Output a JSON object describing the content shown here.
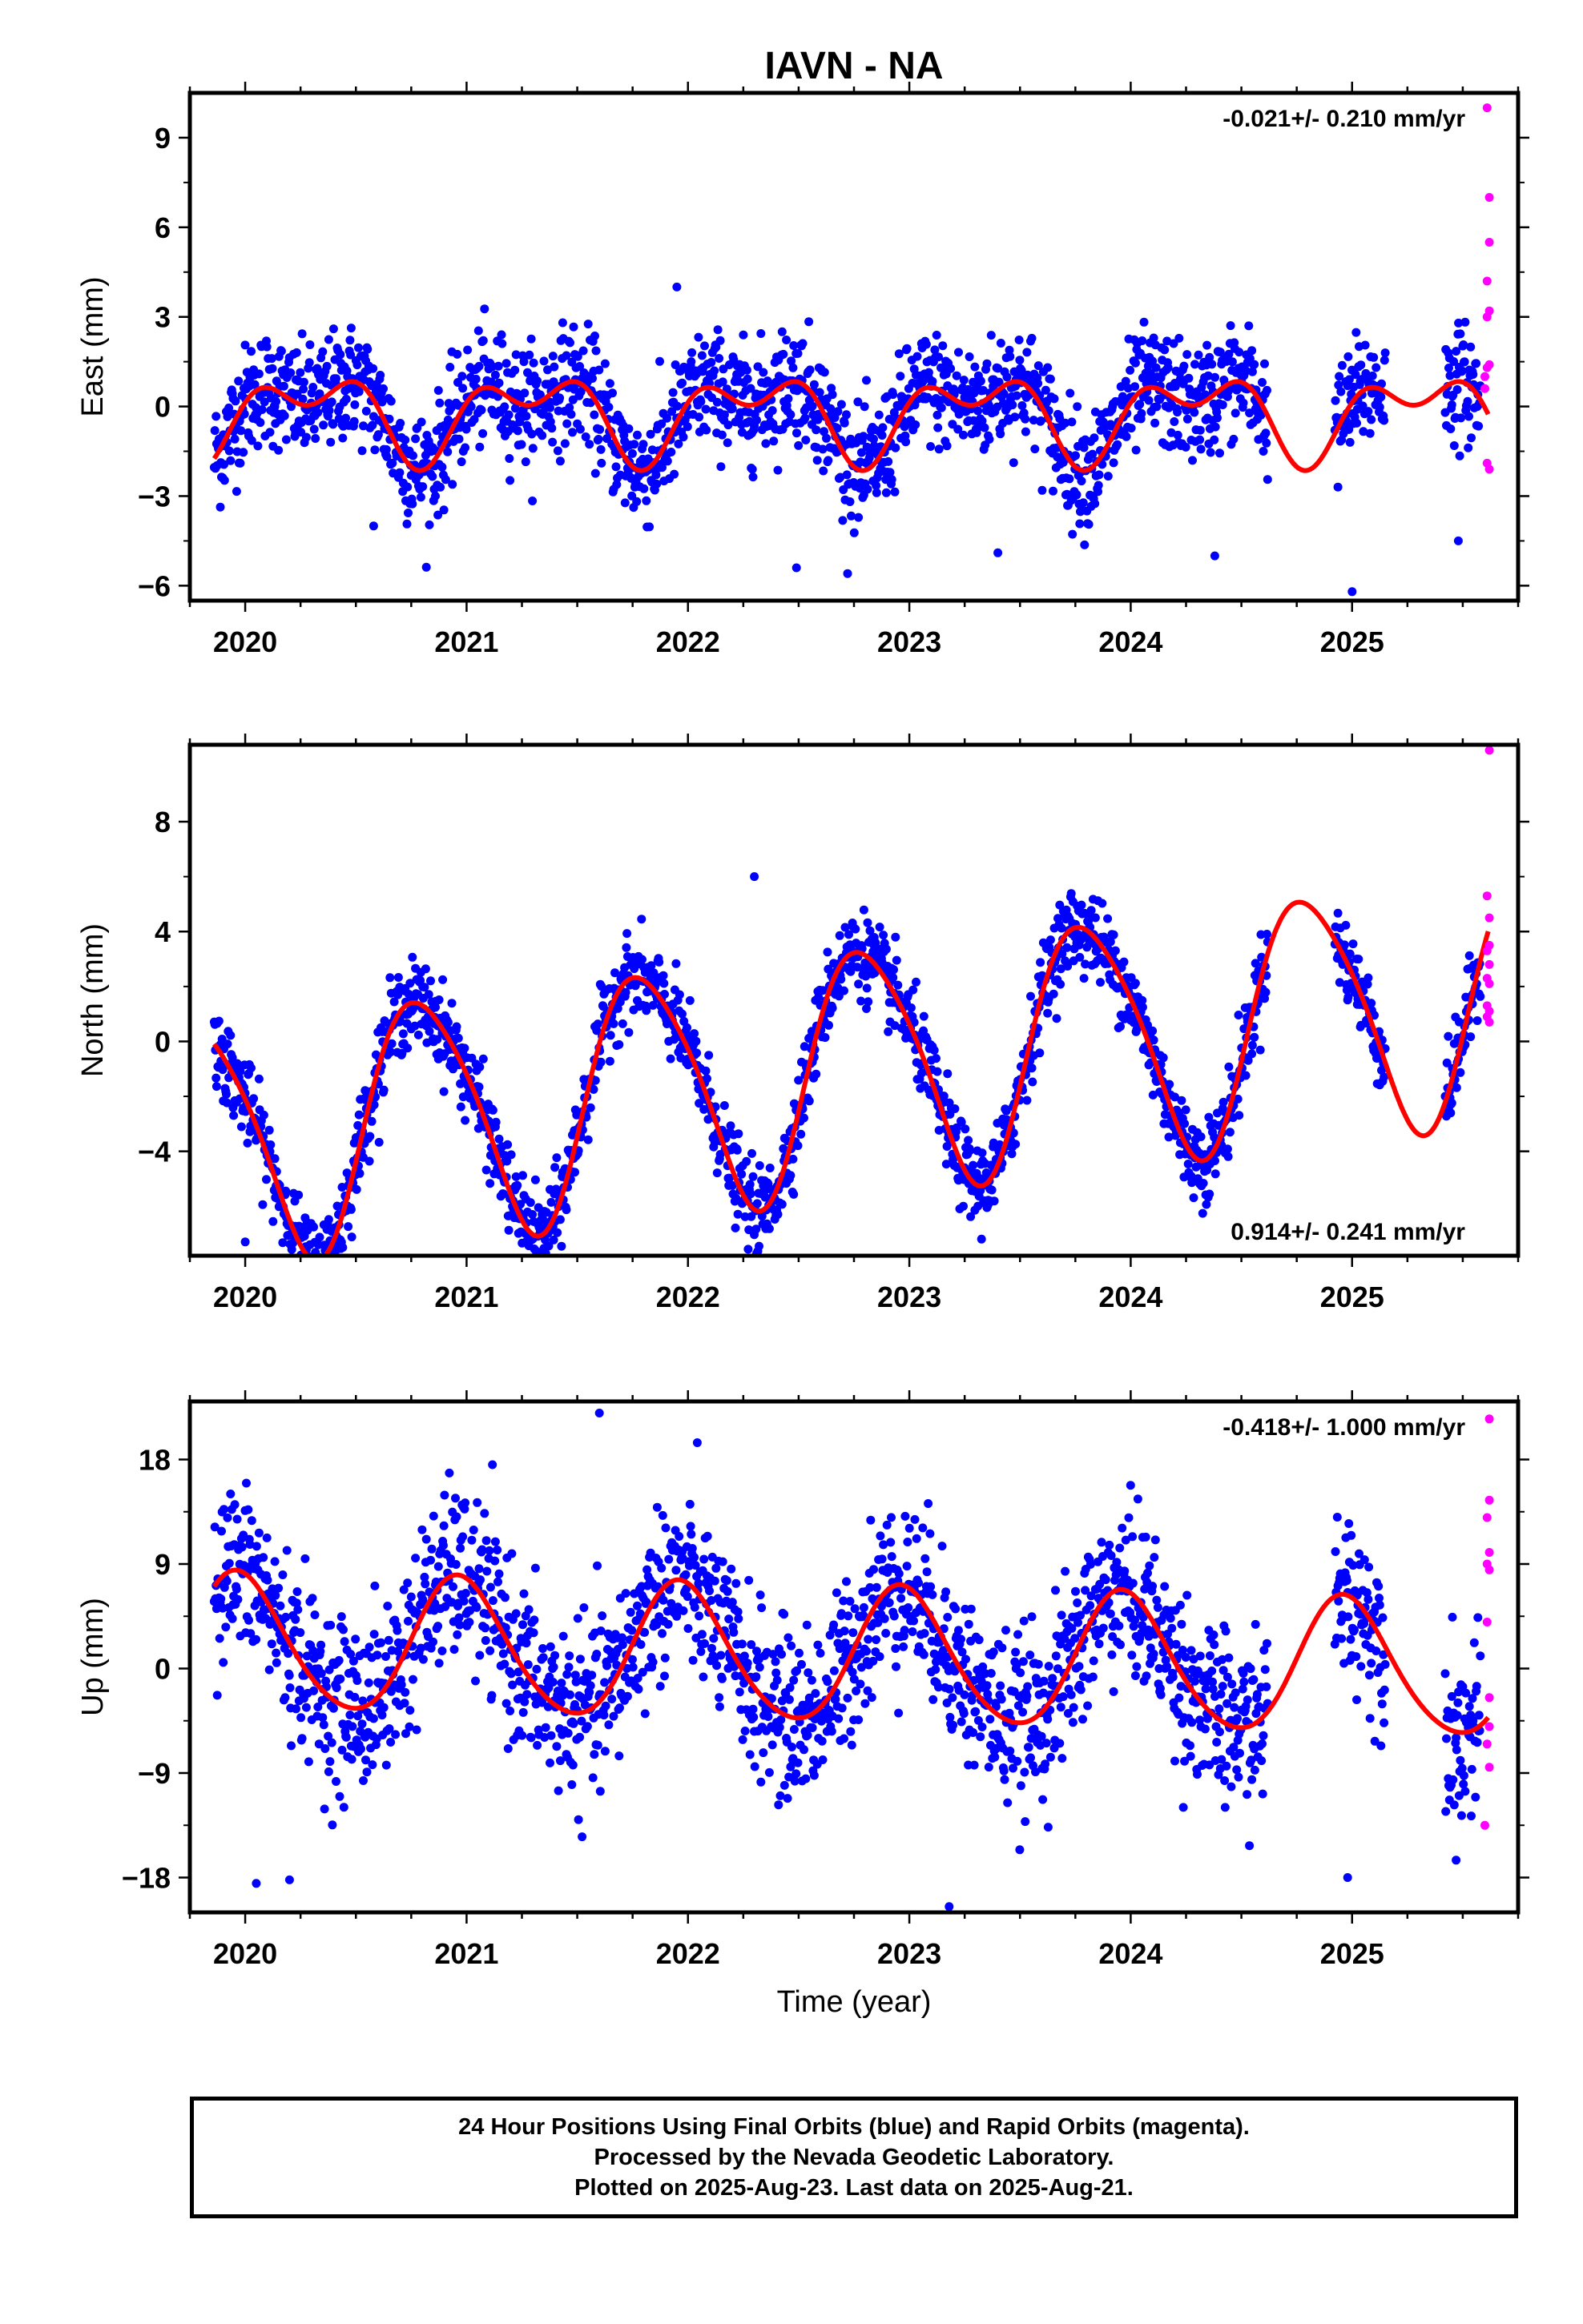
{
  "title": "IAVN - NA",
  "x_axis_label": "Time (year)",
  "footer": {
    "line1": "24 Hour Positions Using Final Orbits (blue) and Rapid Orbits (magenta).",
    "line2": "Processed by the Nevada Geodetic Laboratory.",
    "line3": "Plotted on 2025-Aug-23. Last data on 2025-Aug-21."
  },
  "colors": {
    "final": "#0000ff",
    "rapid": "#ff00ff",
    "model": "#ff0000",
    "frame": "#000000"
  },
  "chart_data": [
    {
      "type": "scatter",
      "ylabel": "East (mm)",
      "rate_label": "-0.021+/- 0.210 mm/yr",
      "rate_position": "top-right",
      "xlim": [
        2019.75,
        2025.75
      ],
      "ylim": [
        -6.5,
        10.5
      ],
      "xticks": [
        2020,
        2021,
        2022,
        2023,
        2024,
        2025
      ],
      "yticks": [
        -6,
        -3,
        0,
        3,
        6,
        9
      ],
      "ytick_labels": [
        "−6",
        "−3",
        "0",
        "3",
        "6",
        "9"
      ],
      "series": [
        {
          "name": "Final Orbits",
          "color": "#0000ff",
          "data_range": [
            2019.86,
            2025.58
          ],
          "gaps": [
            [
              2024.62,
              2024.92
            ],
            [
              2025.15,
              2025.42
            ]
          ],
          "model": {
            "offset": -0.25,
            "annual_amp": 1.1,
            "annual_phase": 0.05,
            "semi_amp": 0.8,
            "semi_phase": -0.09
          },
          "scatter_sd": 0.95,
          "outliers": [
            [
              2021.95,
              4.0
            ],
            [
              2022.49,
              -5.4
            ],
            [
              2023.4,
              -4.9
            ],
            [
              2024.38,
              -5.0
            ],
            [
              2025.0,
              -6.2
            ],
            [
              2020.58,
              -4.0
            ],
            [
              2025.48,
              -4.5
            ]
          ]
        },
        {
          "name": "Rapid Orbits",
          "color": "#ff00ff",
          "points": [
            [
              2025.61,
              10.0
            ],
            [
              2025.62,
              7.0
            ],
            [
              2025.62,
              5.5
            ],
            [
              2025.61,
              4.2
            ],
            [
              2025.62,
              3.2
            ],
            [
              2025.61,
              3.0
            ],
            [
              2025.62,
              1.4
            ],
            [
              2025.61,
              1.3
            ],
            [
              2025.6,
              1.0
            ],
            [
              2025.6,
              0.6
            ],
            [
              2025.61,
              -1.9
            ],
            [
              2025.62,
              -2.1
            ]
          ]
        }
      ],
      "model_curve": {
        "color": "#ff0000",
        "range": [
          2019.86,
          2025.62
        ]
      }
    },
    {
      "type": "scatter",
      "ylabel": "North (mm)",
      "rate_label": "0.914+/- 0.241 mm/yr",
      "rate_position": "bottom-right",
      "xlim": [
        2019.75,
        2025.75
      ],
      "ylim": [
        -7.8,
        10.8
      ],
      "xticks": [
        2020,
        2021,
        2022,
        2023,
        2024,
        2025
      ],
      "yticks": [
        -4,
        0,
        4,
        8
      ],
      "ytick_labels": [
        "−4",
        "0",
        "4",
        "8"
      ],
      "series": [
        {
          "name": "Final Orbits",
          "color": "#0000ff",
          "data_range": [
            2019.86,
            2025.58
          ],
          "gaps": [
            [
              2024.62,
              2024.92
            ],
            [
              2025.15,
              2025.42
            ]
          ],
          "model": {
            "offset": -1.0,
            "trend": 0.914,
            "trend_ref": 2022.7,
            "annual_amp": 4.4,
            "annual_phase": 0.55,
            "semi_amp": 0.6,
            "semi_phase": 0.5
          },
          "scatter_sd": 0.75,
          "outliers": [
            [
              2020.0,
              -7.3
            ],
            [
              2022.3,
              6.0
            ]
          ]
        },
        {
          "name": "Rapid Orbits",
          "color": "#ff00ff",
          "points": [
            [
              2025.62,
              10.6
            ],
            [
              2025.61,
              5.3
            ],
            [
              2025.62,
              4.5
            ],
            [
              2025.62,
              3.5
            ],
            [
              2025.61,
              3.3
            ],
            [
              2025.62,
              2.8
            ],
            [
              2025.61,
              2.3
            ],
            [
              2025.62,
              2.1
            ],
            [
              2025.61,
              1.3
            ],
            [
              2025.62,
              1.1
            ],
            [
              2025.61,
              0.9
            ],
            [
              2025.62,
              0.7
            ]
          ]
        }
      ],
      "model_curve": {
        "color": "#ff0000",
        "range": [
          2019.86,
          2025.62
        ]
      }
    },
    {
      "type": "scatter",
      "ylabel": "Up (mm)",
      "rate_label": "-0.418+/- 1.000 mm/yr",
      "rate_position": "top-right",
      "xlim": [
        2019.75,
        2025.75
      ],
      "ylim": [
        -21,
        23
      ],
      "xticks": [
        2020,
        2021,
        2022,
        2023,
        2024,
        2025
      ],
      "yticks": [
        -18,
        -9,
        0,
        9,
        18
      ],
      "ytick_labels": [
        "−18",
        "−9",
        "0",
        "9",
        "18"
      ],
      "series": [
        {
          "name": "Final Orbits",
          "color": "#0000ff",
          "data_range": [
            2019.86,
            2025.58
          ],
          "gaps": [
            [
              2024.62,
              2024.92
            ],
            [
              2025.15,
              2025.42
            ]
          ],
          "model": {
            "offset": 1.0,
            "trend": -0.418,
            "trend_ref": 2022.7,
            "annual_amp": 5.8,
            "annual_phase": 0.72,
            "semi_amp": 0.6,
            "semi_phase": 0.3
          },
          "scatter_sd": 3.6,
          "outliers": [
            [
              2021.6,
              22.0
            ],
            [
              2023.18,
              -20.5
            ],
            [
              2020.05,
              -18.5
            ],
            [
              2020.2,
              -18.2
            ],
            [
              2024.98,
              -18.0
            ],
            [
              2025.47,
              -16.5
            ]
          ]
        },
        {
          "name": "Rapid Orbits",
          "color": "#ff00ff",
          "points": [
            [
              2025.62,
              21.5
            ],
            [
              2025.62,
              14.5
            ],
            [
              2025.61,
              13.0
            ],
            [
              2025.62,
              10.0
            ],
            [
              2025.61,
              9.0
            ],
            [
              2025.62,
              8.5
            ],
            [
              2025.61,
              4.0
            ],
            [
              2025.62,
              -2.5
            ],
            [
              2025.62,
              -5.0
            ],
            [
              2025.61,
              -6.5
            ],
            [
              2025.62,
              -8.5
            ],
            [
              2025.6,
              -13.5
            ]
          ]
        }
      ],
      "model_curve": {
        "color": "#ff0000",
        "range": [
          2019.86,
          2025.62
        ]
      }
    }
  ]
}
